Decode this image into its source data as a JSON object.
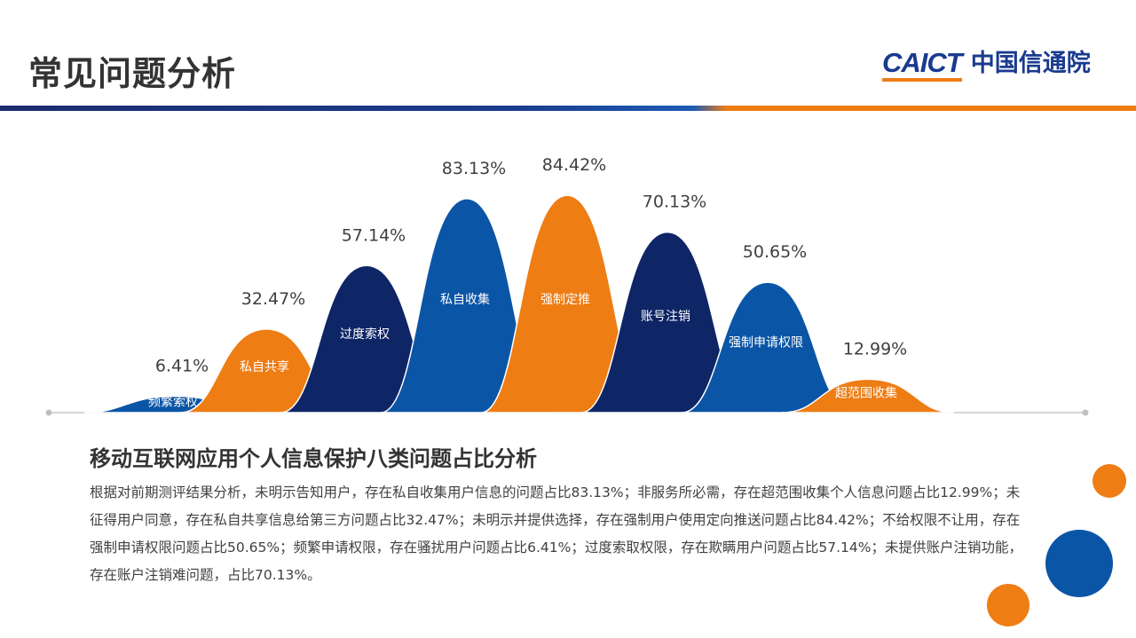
{
  "header": {
    "title": "常见问题分析",
    "logo_en": "CAICT",
    "logo_cn": "中国信通院"
  },
  "colors": {
    "navy": "#0e2566",
    "blue": "#0b55a6",
    "orange": "#ee7d14",
    "title_text": "#333333"
  },
  "chart_data": {
    "type": "area",
    "title": "移动互联网应用个人信息保护八类问题占比分析",
    "unit": "%",
    "categories": [
      "频繁索权",
      "私自共享",
      "过度索权",
      "私自收集",
      "强制定推",
      "账号注销",
      "强制申请权限",
      "超范围收集"
    ],
    "values": [
      6.41,
      32.47,
      57.14,
      83.13,
      84.42,
      70.13,
      50.65,
      12.99
    ],
    "value_labels": [
      "6.41%",
      "32.47%",
      "57.14%",
      "83.13%",
      "84.42%",
      "70.13%",
      "50.65%",
      "12.99%"
    ],
    "colors": [
      "blue",
      "orange",
      "navy",
      "blue",
      "orange",
      "navy",
      "blue",
      "orange"
    ],
    "ylim": [
      0,
      100
    ],
    "grid": false,
    "legend": "none"
  },
  "description": "根据对前期测评结果分析，未明示告知用户，存在私自收集用户信息的问题占比83.13%；非服务所必需，存在超范围收集个人信息问题占比12.99%；未征得用户同意，存在私自共享信息给第三方问题占比32.47%；未明示并提供选择，存在强制用户使用定向推送问题占比84.42%；不给权限不让用，存在强制申请权限问题占比50.65%；频繁申请权限，存在骚扰用户问题占比6.41%；过度索取权限，存在欺瞒用户问题占比57.14%；未提供账户注销功能，存在账户注销难问题，占比70.13%。"
}
